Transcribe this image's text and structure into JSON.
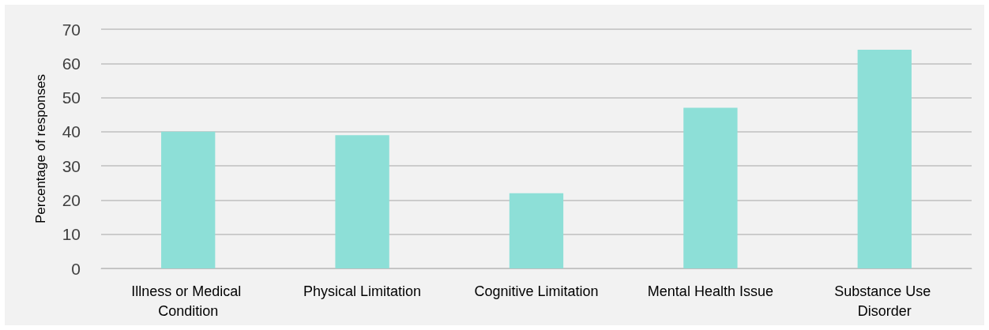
{
  "chart_data": {
    "type": "bar",
    "ylabel": "Percentage of responses",
    "categories": [
      "Illness or Medical Condition",
      "Physical Limitation",
      "Cognitive Limitation",
      "Mental Health Issue",
      "Substance Use Disorder"
    ],
    "values": [
      40,
      39,
      22,
      47,
      64
    ],
    "color": "#8ddfd7",
    "ylim": [
      0,
      70
    ],
    "yticks": [
      0,
      10,
      20,
      30,
      40,
      50,
      60,
      70
    ],
    "grid": "y"
  }
}
